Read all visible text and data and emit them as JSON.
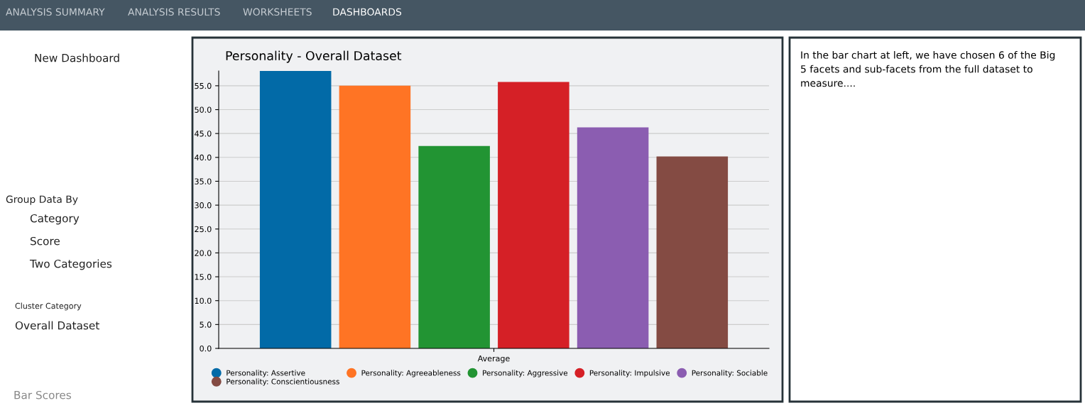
{
  "chart_data": [
    {
      "type": "bar",
      "title": "Personality - Overall Dataset",
      "categories": [
        "Average"
      ],
      "series": [
        {
          "name": "Personality: Assertive",
          "color": "#026aa7",
          "values": [
            58.1
          ]
        },
        {
          "name": "Personality: Agreeableness",
          "color": "#ff7424",
          "values": [
            55.0
          ]
        },
        {
          "name": "Personality: Aggressive",
          "color": "#229433",
          "values": [
            42.4
          ]
        },
        {
          "name": "Personality: Impulsive",
          "color": "#d52026",
          "values": [
            55.8
          ]
        },
        {
          "name": "Personality: Sociable",
          "color": "#8b5db1",
          "values": [
            46.3
          ]
        },
        {
          "name": "Personality: Conscientiousness",
          "color": "#844b43",
          "values": [
            40.2
          ]
        }
      ],
      "ylim": [
        0,
        58.1
      ],
      "yticks": [
        {
          "value": 0,
          "label": "0.0"
        },
        {
          "value": 5,
          "label": "5.0"
        },
        {
          "value": 10,
          "label": "10.0"
        },
        {
          "value": 15,
          "label": "15.0"
        },
        {
          "value": 20,
          "label": "20.0"
        },
        {
          "value": 25,
          "label": "25.0"
        },
        {
          "value": 30,
          "label": "30.0"
        },
        {
          "value": 35,
          "label": "35.0"
        },
        {
          "value": 40,
          "label": "40.0"
        },
        {
          "value": 45,
          "label": "45.0"
        },
        {
          "value": 50,
          "label": "50.0"
        },
        {
          "value": 55,
          "label": "55.0"
        }
      ],
      "grid": "y",
      "legend": "bottom"
    },
    {
      "type": "other",
      "annotations": [
        "In the bar chart at left, we have chosen 6 of the Big 5 facets and sub-facets from the full dataset to measure...."
      ]
    },
    {
      "type": "other",
      "annotations": [
        "ANALYSIS SUMMARY",
        "ANALYSIS RESULTS",
        "WORKSHEETS",
        "DASHBOARDS",
        "New Dashboard",
        "Group Data By",
        "Category",
        "Score",
        "Two Categories",
        "Cluster Category",
        "Overall Dataset",
        "Bar Scores"
      ]
    }
  ]
}
